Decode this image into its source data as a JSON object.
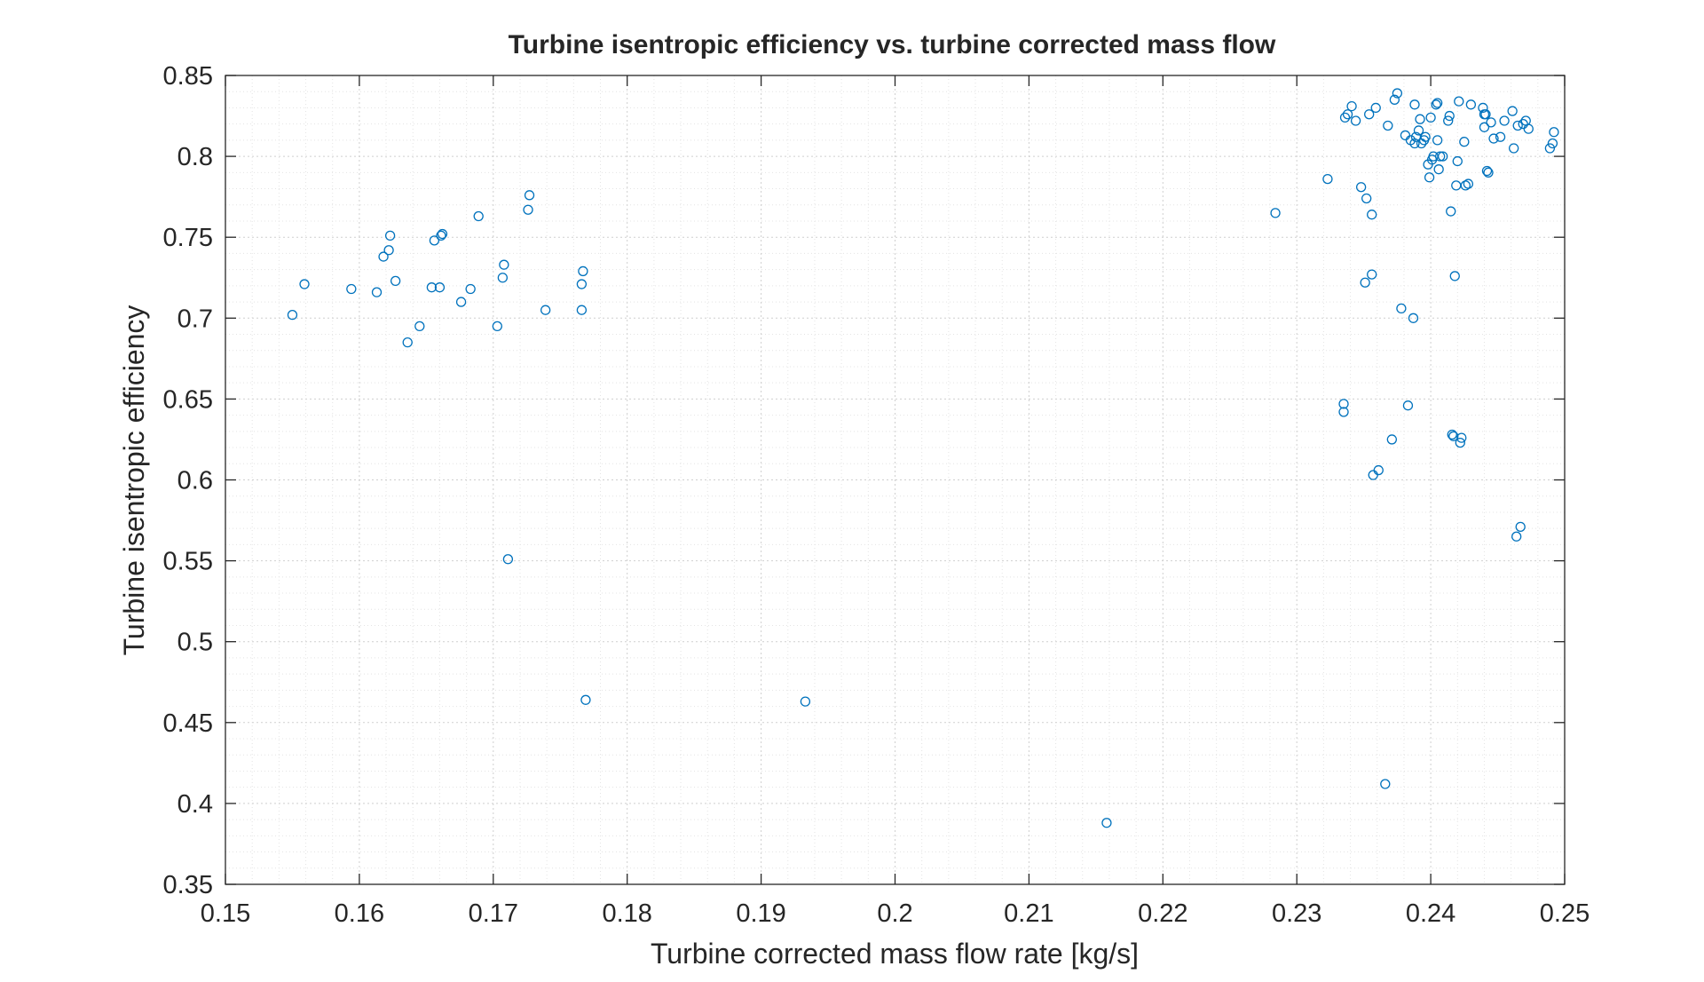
{
  "chart_data": {
    "type": "scatter",
    "title": "Turbine isentropic efficiency vs. turbine corrected mass flow",
    "xlabel": "Turbine corrected mass flow rate [kg/s]",
    "ylabel": "Turbine isentropic efficiency",
    "xlim": [
      0.15,
      0.25
    ],
    "ylim": [
      0.35,
      0.85
    ],
    "xticks": [
      0.15,
      0.16,
      0.17,
      0.18,
      0.19,
      0.2,
      0.21,
      0.22,
      0.23,
      0.24,
      0.25
    ],
    "xtick_labels": [
      "0.15",
      "0.16",
      "0.17",
      "0.18",
      "0.19",
      "0.2",
      "0.21",
      "0.22",
      "0.23",
      "0.24",
      "0.25"
    ],
    "yticks": [
      0.35,
      0.4,
      0.45,
      0.5,
      0.55,
      0.6,
      0.65,
      0.7,
      0.75,
      0.8,
      0.85
    ],
    "ytick_labels": [
      "0.35",
      "0.4",
      "0.45",
      "0.5",
      "0.55",
      "0.6",
      "0.65",
      "0.7",
      "0.75",
      "0.8",
      "0.85"
    ],
    "grid": "major and minor, dotted",
    "marker": "open circle",
    "marker_color": "#0072BD",
    "series": [
      {
        "x": [
          0.155,
          0.1559,
          0.1594,
          0.1613,
          0.1618,
          0.1622,
          0.1623,
          0.1627,
          0.1636,
          0.1645,
          0.1654,
          0.1656,
          0.166,
          0.1661,
          0.1662,
          0.1676,
          0.1683,
          0.1689,
          0.1703,
          0.1707,
          0.1708,
          0.1711,
          0.1726,
          0.1727,
          0.1739,
          0.1766,
          0.1766,
          0.1767,
          0.1769,
          0.1933,
          0.2158,
          0.2284,
          0.2323,
          0.2335,
          0.2335,
          0.2336,
          0.2338,
          0.2341,
          0.2344,
          0.2348,
          0.2351,
          0.2352,
          0.2354,
          0.2356,
          0.2356,
          0.2357,
          0.2359,
          0.2361,
          0.2366,
          0.2368,
          0.2371,
          0.2373,
          0.2375,
          0.2378,
          0.2381,
          0.2383,
          0.2385,
          0.2387,
          0.2388,
          0.2388,
          0.2389,
          0.2391,
          0.2392,
          0.2393,
          0.2395,
          0.2396,
          0.2398,
          0.2399,
          0.24,
          0.2401,
          0.2402,
          0.2404,
          0.2405,
          0.2405,
          0.2406,
          0.2407,
          0.2409,
          0.2413,
          0.2414,
          0.2415,
          0.2416,
          0.2417,
          0.2418,
          0.2419,
          0.242,
          0.2421,
          0.2422,
          0.2423,
          0.2425,
          0.2426,
          0.2428,
          0.243,
          0.2439,
          0.244,
          0.244,
          0.2441,
          0.2442,
          0.2443,
          0.2445,
          0.2447,
          0.2452,
          0.2455,
          0.2461,
          0.2462,
          0.2464,
          0.2465,
          0.2467,
          0.2469,
          0.2471,
          0.2473,
          0.2489,
          0.2491,
          0.2492
        ],
        "y": [
          0.702,
          0.721,
          0.718,
          0.716,
          0.738,
          0.742,
          0.751,
          0.723,
          0.685,
          0.695,
          0.719,
          0.748,
          0.719,
          0.751,
          0.752,
          0.71,
          0.718,
          0.763,
          0.695,
          0.725,
          0.733,
          0.551,
          0.767,
          0.776,
          0.705,
          0.705,
          0.721,
          0.729,
          0.464,
          0.463,
          0.388,
          0.765,
          0.786,
          0.647,
          0.642,
          0.824,
          0.826,
          0.831,
          0.822,
          0.781,
          0.722,
          0.774,
          0.826,
          0.727,
          0.764,
          0.603,
          0.83,
          0.606,
          0.412,
          0.819,
          0.625,
          0.835,
          0.839,
          0.706,
          0.813,
          0.646,
          0.81,
          0.7,
          0.808,
          0.832,
          0.812,
          0.816,
          0.823,
          0.808,
          0.81,
          0.812,
          0.795,
          0.787,
          0.824,
          0.798,
          0.8,
          0.832,
          0.833,
          0.81,
          0.792,
          0.8,
          0.8,
          0.822,
          0.825,
          0.766,
          0.628,
          0.627,
          0.726,
          0.782,
          0.797,
          0.834,
          0.623,
          0.626,
          0.809,
          0.782,
          0.783,
          0.832,
          0.83,
          0.826,
          0.818,
          0.826,
          0.791,
          0.79,
          0.821,
          0.811,
          0.812,
          0.822,
          0.828,
          0.805,
          0.565,
          0.819,
          0.571,
          0.82,
          0.822,
          0.817,
          0.805,
          0.808,
          0.815
        ]
      }
    ]
  }
}
